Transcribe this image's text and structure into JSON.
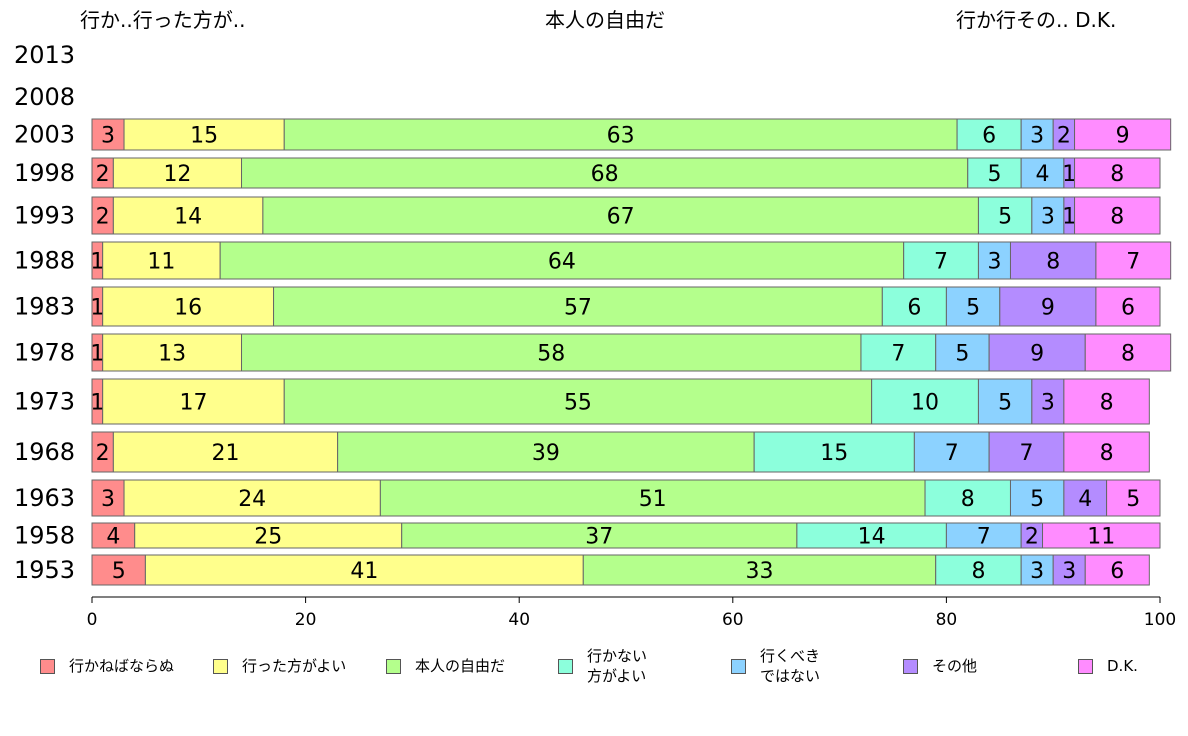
{
  "top_labels": {
    "left": "行か..行った方が..",
    "center": "本人の自由だ",
    "right": "行か行その.. D.K."
  },
  "chart_data": {
    "type": "bar",
    "orientation": "horizontal",
    "stacked": true,
    "categories": [
      "2013",
      "2008",
      "2003",
      "1998",
      "1993",
      "1988",
      "1983",
      "1978",
      "1973",
      "1968",
      "1963",
      "1958",
      "1953"
    ],
    "xlim": [
      0,
      100
    ],
    "xticks": [
      "0",
      "20",
      "40",
      "60",
      "80",
      "100"
    ],
    "series": [
      {
        "name": "行かねばならぬ",
        "color": "#ff8c8c",
        "values": [
          null,
          null,
          3,
          2,
          2,
          1,
          1,
          1,
          1,
          2,
          3,
          4,
          5
        ]
      },
      {
        "name": "行った方がよい",
        "color": "#ffff8c",
        "values": [
          null,
          null,
          15,
          12,
          14,
          11,
          16,
          13,
          17,
          21,
          24,
          25,
          41
        ]
      },
      {
        "name": "本人の自由だ",
        "color": "#b4ff8c",
        "values": [
          null,
          null,
          63,
          68,
          67,
          64,
          57,
          58,
          55,
          39,
          51,
          37,
          33
        ]
      },
      {
        "name": "行かない\n方がよい",
        "color": "#8cffdc",
        "values": [
          null,
          null,
          6,
          5,
          5,
          7,
          6,
          7,
          10,
          15,
          8,
          14,
          8
        ]
      },
      {
        "name": "行くべき\nではない",
        "color": "#8cd2ff",
        "values": [
          null,
          null,
          3,
          4,
          3,
          3,
          5,
          5,
          5,
          7,
          5,
          7,
          3
        ]
      },
      {
        "name": "その他",
        "color": "#b48cff",
        "values": [
          null,
          null,
          2,
          1,
          1,
          8,
          9,
          9,
          3,
          7,
          4,
          2,
          3
        ]
      },
      {
        "name": "D.K.",
        "color": "#ff8cff",
        "values": [
          null,
          null,
          9,
          8,
          8,
          7,
          6,
          8,
          8,
          8,
          5,
          11,
          6
        ]
      }
    ],
    "grid": false,
    "legend_position": "bottom"
  }
}
